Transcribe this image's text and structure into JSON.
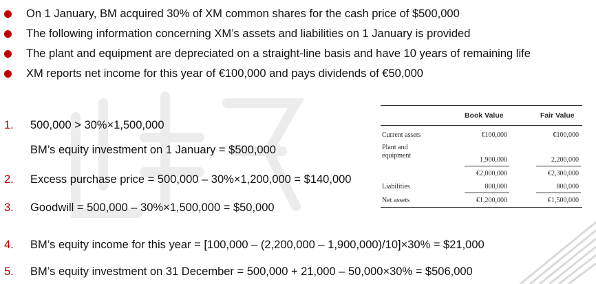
{
  "colors": {
    "bullet": "#c00000",
    "number": "#c00000",
    "text": "#111111"
  },
  "bullets": [
    "On 1 January, BM acquired 30% of XM common shares for the cash price of $500,000",
    "The following information concerning XM’s assets and liabilities on 1 January is provided",
    "The plant and equipment are depreciated on a straight-line basis and have 10 years of remaining life",
    "XM reports net income for this year of €100,000 and pays dividends of €50,000"
  ],
  "steps": [
    {
      "num": "1.",
      "text": "500,000 > 30%×1,500,000"
    },
    {
      "num": "",
      "text": "BM’s equity investment on 1 January = $500,000"
    },
    {
      "num": "2.",
      "text": "Excess purchase price = 500,000 – 30%×1,200,000 = $140,000"
    },
    {
      "num": "3.",
      "text": "Goodwill = 500,000 – 30%×1,500,000 = $50,000"
    },
    {
      "num": "4.",
      "text": "BM’s equity income for this year = [100,000 – (2,200,000 – 1,900,000)/10]×30% = $21,000"
    },
    {
      "num": "5.",
      "text": "BM’s equity investment on 31 December = 500,000 + 21,000 – 50,000×30% = $506,000"
    }
  ],
  "table": {
    "headers": [
      "Book Value",
      "Fair Value"
    ],
    "rows": [
      {
        "label": "Current assets",
        "book": "€100,000",
        "fair": "€100,000"
      },
      {
        "label": "Plant and equipment",
        "book": "1,900,000",
        "fair": "2,200,000"
      },
      {
        "label": "",
        "book": "€2,000,000",
        "fair": "€2,300,000"
      },
      {
        "label": "Liabilities",
        "book": "800,000",
        "fair": "800,000"
      },
      {
        "label": "Net assets",
        "book": "€1,200,000",
        "fair": "€1,500,000"
      }
    ]
  }
}
